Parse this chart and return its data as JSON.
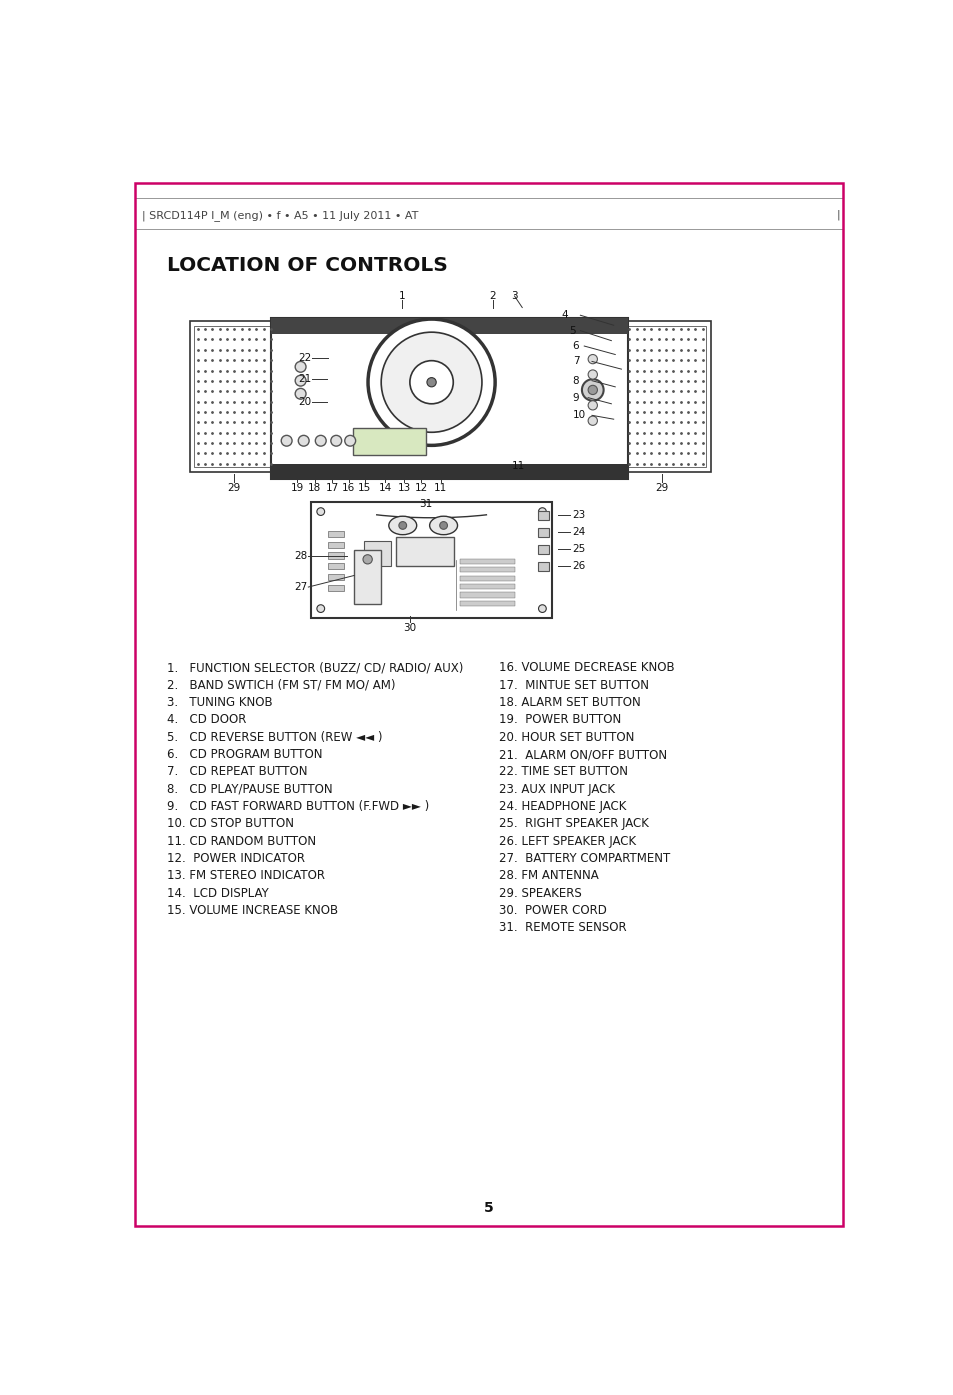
{
  "header_text": "| SRCD114P I_M (eng) • f • A5 • 11 July 2011 • AT",
  "title": "LOCATION OF CONTROLS",
  "page_number": "5",
  "left_items": [
    "1.   FUNCTION SELECTOR (BUZZ/ CD/ RADIO/ AUX)",
    "2.   BAND SWTICH (FM ST/ FM MO/ AM)",
    "3.   TUNING KNOB",
    "4.   CD DOOR",
    "5.   CD REVERSE BUTTON (REW ◄◄ )",
    "6.   CD PROGRAM BUTTON",
    "7.   CD REPEAT BUTTON",
    "8.   CD PLAY/PAUSE BUTTON",
    "9.   CD FAST FORWARD BUTTON (F.FWD ►► )",
    "10. CD STOP BUTTON",
    "11. CD RANDOM BUTTON",
    "12.  POWER INDICATOR",
    "13. FM STEREO INDICATOR",
    "14.  LCD DISPLAY",
    "15. VOLUME INCREASE KNOB"
  ],
  "right_items": [
    "16. VOLUME DECREASE KNOB",
    "17.  MINTUE SET BUTTON",
    "18. ALARM SET BUTTON",
    "19.  POWER BUTTON",
    "20. HOUR SET BUTTON",
    "21.  ALARM ON/OFF BUTTON",
    "22. TIME SET BUTTON",
    "23. AUX INPUT JACK",
    "24. HEADPHONE JACK",
    "25.  RIGHT SPEAKER JACK",
    "26. LEFT SPEAKER JACK",
    "27.  BATTERY COMPARTMENT",
    "28. FM ANTENNA",
    "29. SPEAKERS",
    "30.  POWER CORD",
    "31.  REMOTE SENSOR"
  ],
  "bg_color": "#ffffff",
  "border_color": "#cc0066",
  "text_color": "#1a1a1a",
  "header_color": "#444444",
  "diagram_line_color": "#333333",
  "grille_dot_color": "#555555"
}
